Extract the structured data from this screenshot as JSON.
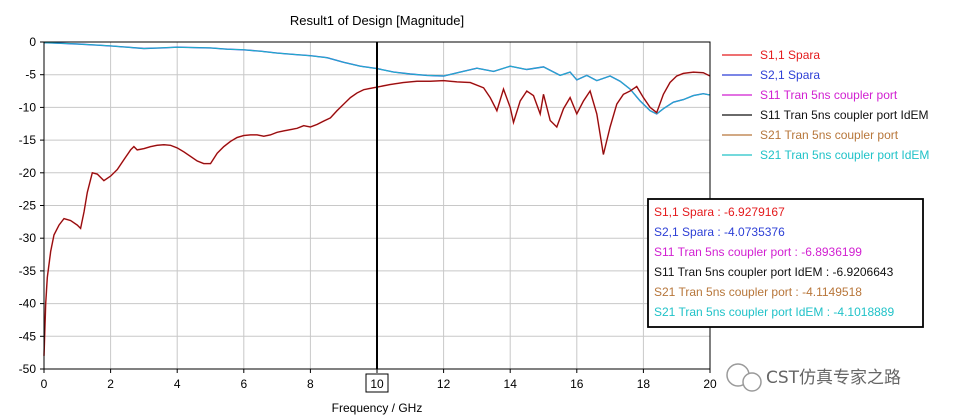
{
  "chart_data": {
    "type": "line",
    "title": "Result1 of Design [Magnitude]",
    "xlabel": "Frequency / GHz",
    "ylabel": "",
    "xlim": [
      0,
      20
    ],
    "ylim": [
      -50,
      0
    ],
    "x_ticks": [
      "0",
      "2",
      "4",
      "6",
      "8",
      "10",
      "12",
      "14",
      "16",
      "18",
      "20"
    ],
    "y_ticks": [
      "0",
      "-5",
      "-10",
      "-15",
      "-20",
      "-25",
      "-30",
      "-35",
      "-40",
      "-45",
      "-50"
    ],
    "grid": true,
    "legend_position": "right",
    "marker": {
      "x": 10,
      "label": "10"
    },
    "series": [
      {
        "name": "S1,1 Spara",
        "color": "#e41a1c",
        "x": [
          0,
          0.05,
          0.1,
          0.2,
          0.3,
          0.45,
          0.6,
          0.8,
          1.0,
          1.1,
          1.2,
          1.3,
          1.45,
          1.6,
          1.8,
          2.0,
          2.2,
          2.4,
          2.6,
          2.7,
          2.8,
          3.0,
          3.2,
          3.4,
          3.6,
          3.8,
          4.0,
          4.2,
          4.4,
          4.6,
          4.8,
          5.0,
          5.2,
          5.4,
          5.6,
          5.8,
          6.0,
          6.2,
          6.4,
          6.6,
          6.8,
          7.0,
          7.2,
          7.4,
          7.6,
          7.8,
          8.0,
          8.2,
          8.4,
          8.6,
          8.8,
          9.0,
          9.2,
          9.4,
          9.6,
          9.8,
          10.0,
          10.4,
          10.8,
          11.2,
          11.6,
          12.0,
          12.4,
          12.8,
          13.2,
          13.4,
          13.6,
          13.8,
          14.0,
          14.1,
          14.3,
          14.5,
          14.7,
          14.9,
          15.0,
          15.2,
          15.4,
          15.6,
          15.8,
          16.0,
          16.2,
          16.4,
          16.6,
          16.8,
          17.0,
          17.2,
          17.4,
          17.6,
          17.8,
          18.0,
          18.2,
          18.4,
          18.6,
          18.8,
          19.0,
          19.2,
          19.5,
          19.8,
          20.0
        ],
        "y": [
          -48,
          -40,
          -36,
          -32,
          -29.5,
          -28,
          -27,
          -27.3,
          -28,
          -28.5,
          -26,
          -23,
          -20,
          -20.2,
          -21.2,
          -20.5,
          -19.5,
          -18,
          -16.5,
          -16,
          -16.5,
          -16.3,
          -16,
          -15.8,
          -15.7,
          -15.8,
          -16.2,
          -16.8,
          -17.5,
          -18.2,
          -18.6,
          -18.6,
          -17,
          -16,
          -15.2,
          -14.6,
          -14.3,
          -14.2,
          -14.2,
          -14.4,
          -14.2,
          -13.8,
          -13.6,
          -13.4,
          -13.2,
          -12.8,
          -13,
          -12.6,
          -12.1,
          -11.6,
          -10.5,
          -9.5,
          -8.5,
          -7.8,
          -7.3,
          -7.1,
          -6.9,
          -6.5,
          -6.2,
          -6.0,
          -6.0,
          -5.9,
          -6.1,
          -6.2,
          -7.0,
          -8.5,
          -10.5,
          -7.2,
          -10.0,
          -12.3,
          -9.0,
          -7.5,
          -8.2,
          -11.0,
          -8.0,
          -12.0,
          -13.0,
          -10.2,
          -8.5,
          -11.0,
          -9.0,
          -7.5,
          -11.0,
          -17.2,
          -13.0,
          -9.5,
          -8.0,
          -7.5,
          -6.8,
          -8.5,
          -10.0,
          -10.8,
          -8.0,
          -6.2,
          -5.2,
          -4.8,
          -4.6,
          -4.7,
          -5.2
        ]
      },
      {
        "name": "S2,1 Spara",
        "color": "#2c3fd6",
        "x": [
          0,
          0.5,
          1,
          1.5,
          2,
          2.5,
          3,
          3.5,
          4,
          4.5,
          5,
          5.5,
          6,
          6.5,
          7,
          7.5,
          8,
          8.5,
          9,
          9.5,
          10,
          10.5,
          11,
          11.5,
          12,
          12.5,
          13,
          13.5,
          14,
          14.5,
          15,
          15.5,
          15.8,
          16,
          16.3,
          16.6,
          17,
          17.3,
          17.6,
          17.9,
          18.2,
          18.4,
          18.6,
          18.9,
          19.2,
          19.5,
          19.8,
          20
        ],
        "y": [
          -0.1,
          -0.2,
          -0.3,
          -0.45,
          -0.6,
          -0.8,
          -1.0,
          -0.9,
          -0.8,
          -0.85,
          -0.9,
          -1.1,
          -1.2,
          -1.4,
          -1.7,
          -1.9,
          -2.1,
          -2.4,
          -3.1,
          -3.7,
          -4.07,
          -4.6,
          -4.9,
          -5.1,
          -5.2,
          -4.6,
          -4.0,
          -4.5,
          -3.7,
          -4.2,
          -3.8,
          -5.1,
          -4.6,
          -5.8,
          -5.1,
          -5.9,
          -5.2,
          -6.0,
          -7.2,
          -9.0,
          -10.5,
          -11.0,
          -10.2,
          -9.2,
          -8.8,
          -8.2,
          -7.9,
          -8.1
        ]
      },
      {
        "name": "S11 Tran 5ns coupler port",
        "color": "#d11fd1",
        "x": [],
        "y": []
      },
      {
        "name": "S11 Tran 5ns coupler port IdEM",
        "color": "#111111",
        "x": [],
        "y": []
      },
      {
        "name": "S21 Tran 5ns coupler port",
        "color": "#b8763a",
        "x": [],
        "y": []
      },
      {
        "name": "S21 Tran 5ns coupler port IdEM",
        "color": "#20c2c8",
        "x": [],
        "y": []
      }
    ]
  },
  "readout": [
    {
      "text": "S1,1 Spara : -6.9279167",
      "color": "#e41a1c"
    },
    {
      "text": "S2,1 Spara : -4.0735376",
      "color": "#2c3fd6"
    },
    {
      "text": "S11 Tran 5ns coupler port : -6.8936199",
      "color": "#d11fd1"
    },
    {
      "text": "S11 Tran 5ns coupler port IdEM : -6.9206643",
      "color": "#111111"
    },
    {
      "text": "S21 Tran 5ns coupler port : -4.1149518",
      "color": "#b8763a"
    },
    {
      "text": "S21 Tran 5ns coupler port IdEM : -4.1018889",
      "color": "#20c2c8"
    }
  ],
  "watermark": {
    "text": "CST仿真专家之路",
    "icon": "wechat-icon"
  }
}
